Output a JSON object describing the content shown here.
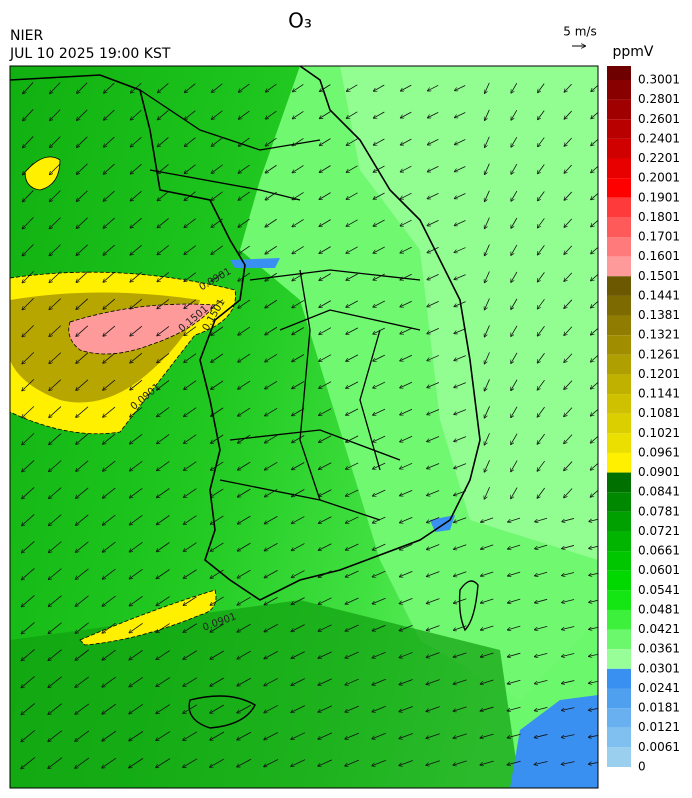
{
  "header": {
    "title": "O₃",
    "agency": "NIER",
    "datetime": "JUL 10 2025 19:00 KST",
    "wind_scale": "5 m/s"
  },
  "colorbar": {
    "unit": "ppmV",
    "levels": [
      0.3001,
      0.2801,
      0.2601,
      0.2401,
      0.2201,
      0.2001,
      0.1901,
      0.1801,
      0.1701,
      0.1601,
      0.1501,
      0.1441,
      0.1381,
      0.1321,
      0.1261,
      0.1201,
      0.1141,
      0.1081,
      0.1021,
      0.0961,
      0.0901,
      0.0841,
      0.0781,
      0.0721,
      0.0661,
      0.0601,
      0.0541,
      0.0481,
      0.0421,
      0.0361,
      0.0301,
      0.0241,
      0.0181,
      0.0121,
      0.0061,
      0
    ],
    "colors": [
      "#6e0000",
      "#880000",
      "#a00000",
      "#b80000",
      "#d00000",
      "#e80000",
      "#ff0000",
      "#ff3a3a",
      "#ff5a5a",
      "#ff7a7a",
      "#ff9a9a",
      "#6b5800",
      "#7d6a00",
      "#8f7c00",
      "#a08e00",
      "#b09f00",
      "#c0b000",
      "#cfc000",
      "#dccf00",
      "#eadf00",
      "#fff000",
      "#007000",
      "#008800",
      "#00a000",
      "#00b400",
      "#00c600",
      "#00d800",
      "#14e614",
      "#3cf03c",
      "#6cf86c",
      "#98ff98",
      "#3a90f0",
      "#50a0f0",
      "#68b0f0",
      "#80c0f0",
      "#9ad0ee"
    ]
  },
  "contour_labels": [
    "0.0901",
    "0.1501",
    "0.0901",
    "0.1501",
    "0.0901"
  ]
}
